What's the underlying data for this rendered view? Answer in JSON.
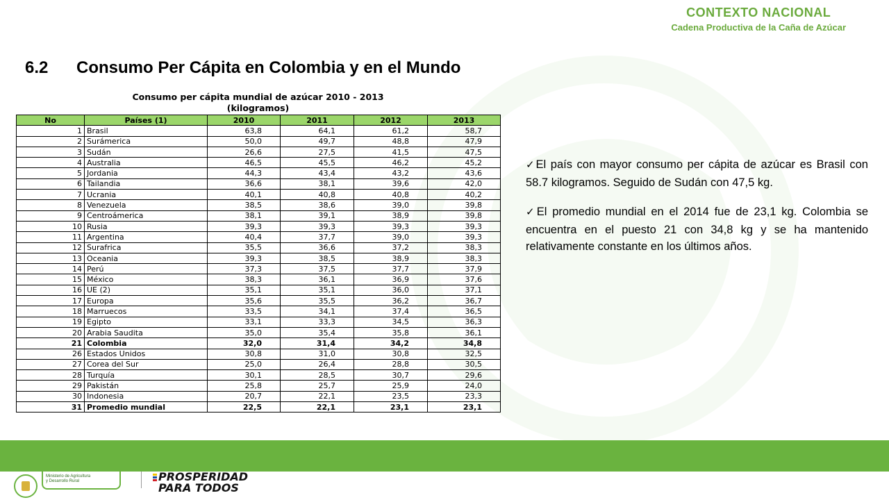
{
  "header": {
    "section": "CONTEXTO NACIONAL",
    "subtitle": "Cadena Productiva de la Caña de Azúcar"
  },
  "slide": {
    "number": "6.2",
    "title": "Consumo Per Cápita en Colombia y en el Mundo"
  },
  "table": {
    "title_line1": "Consumo per cápita mundial de azúcar  2010 - 2013",
    "title_line2": "(kilogramos)",
    "columns": [
      "No",
      "Países (1)",
      "2010",
      "2011",
      "2012",
      "2013"
    ],
    "rows": [
      [
        "1",
        "Brasil",
        "63,8",
        "64,1",
        "61,2",
        "58,7"
      ],
      [
        "2",
        "Surámerica",
        "50,0",
        "49,7",
        "48,8",
        "47,9"
      ],
      [
        "3",
        "Sudán",
        "26,6",
        "27,5",
        "41,5",
        "47,5"
      ],
      [
        "4",
        "Australia",
        "46,5",
        "45,5",
        "46,2",
        "45,2"
      ],
      [
        "5",
        "Jordania",
        "44,3",
        "43,4",
        "43,2",
        "43,6"
      ],
      [
        "6",
        "Tailandia",
        "36,6",
        "38,1",
        "39,6",
        "42,0"
      ],
      [
        "7",
        "Ucrania",
        "40,1",
        "40,8",
        "40,8",
        "40,2"
      ],
      [
        "8",
        "Venezuela",
        "38,5",
        "38,6",
        "39,0",
        "39,8"
      ],
      [
        "9",
        "Centroámerica",
        "38,1",
        "39,1",
        "38,9",
        "39,8"
      ],
      [
        "10",
        "Rusia",
        "39,3",
        "39,3",
        "39,3",
        "39,3"
      ],
      [
        "11",
        "Argentina",
        "40,4",
        "37,7",
        "39,0",
        "39,3"
      ],
      [
        "12",
        "Surafrica",
        "35,5",
        "36,6",
        "37,2",
        "38,3"
      ],
      [
        "13",
        "Oceania",
        "39,3",
        "38,5",
        "38,9",
        "38,3"
      ],
      [
        "14",
        "Perú",
        "37,3",
        "37,5",
        "37,7",
        "37,9"
      ],
      [
        "15",
        "México",
        "38,3",
        "36,1",
        "36,9",
        "37,6"
      ],
      [
        "16",
        "UE (2)",
        "35,1",
        "35,1",
        "36,0",
        "37,1"
      ],
      [
        "17",
        "Europa",
        "35,6",
        "35,5",
        "36,2",
        "36,7"
      ],
      [
        "18",
        "Marruecos",
        "33,5",
        "34,1",
        "37,4",
        "36,5"
      ],
      [
        "19",
        "Egipto",
        "33,1",
        "33,3",
        "34,5",
        "36,3"
      ],
      [
        "20",
        "Arabia Saudita",
        "35,0",
        "35,4",
        "35,8",
        "36,1"
      ],
      [
        "21",
        "Colombia",
        "32,0",
        "31,4",
        "34,2",
        "34,8"
      ],
      [
        "26",
        "Estados Unidos",
        "30,8",
        "31,0",
        "30,8",
        "32,5"
      ],
      [
        "27",
        "Corea del Sur",
        "25,0",
        "26,4",
        "28,8",
        "30,5"
      ],
      [
        "28",
        "Turquía",
        "30,1",
        "28,5",
        "30,7",
        "29,6"
      ],
      [
        "29",
        "Pakistán",
        "25,8",
        "25,7",
        "25,9",
        "24,0"
      ],
      [
        "30",
        "Indonesia",
        "20,7",
        "22,1",
        "23,5",
        "23,3"
      ],
      [
        "31",
        "Promedio mundial",
        "22,5",
        "22,1",
        "23,1",
        "23,1"
      ]
    ],
    "bold_rows": [
      20,
      26
    ]
  },
  "bullets": [
    "El país con mayor consumo per cápita de azúcar es Brasil con 58.7 kilogramos. Seguido de Sudán con 47,5 kg.",
    "El promedio mundial en el 2014 fue de 23,1 kg. Colombia se encuentra en el puesto 21 con 34,8 kg y se ha mantenido relativamente constante en los últimos años."
  ],
  "footer": {
    "ministry_line1": "Ministerio de Agricultura",
    "ministry_line2": "y Desarrollo Rural",
    "slogan_line1": "PROSPERIDAD",
    "slogan_line2": "PARA TODOS"
  },
  "colors": {
    "accent_green": "#6ab33f",
    "header_green": "#9bd66a"
  }
}
